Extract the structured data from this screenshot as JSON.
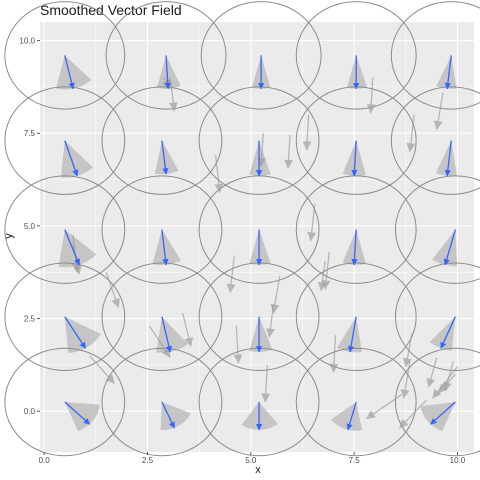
{
  "chart_data": {
    "type": "vector-field",
    "title": "Smoothed Vector Field",
    "xlabel": "x",
    "ylabel": "y",
    "xlim": [
      -0.1,
      10.4
    ],
    "ylim": [
      -1.1,
      10.5
    ],
    "x_ticks": [
      0.0,
      2.5,
      5.0,
      7.5,
      10.0
    ],
    "x_tick_labels": [
      "0.0",
      "2.5",
      "5.0",
      "7.5",
      "10.0"
    ],
    "y_ticks": [
      0.0,
      2.5,
      5.0,
      7.5,
      10.0
    ],
    "y_tick_labels": [
      "0.0",
      "2.5",
      "5.0",
      "7.5",
      "10.0"
    ],
    "grid": true,
    "colors": {
      "panel": "#ebebeb",
      "grid": "#ffffff",
      "smoothed_vector": "#3366ff",
      "raw_vector": "#999999",
      "cone": "#bebebe",
      "circle": "#8c8c8c"
    },
    "circle_radius": 1.45,
    "smoothed_vectors": [
      {
        "x": 0.5,
        "y": 9.6,
        "dx": 0.2,
        "dy": -0.9,
        "cone_l": -0.45,
        "cone_r": 0.55
      },
      {
        "x": 2.95,
        "y": 9.6,
        "dx": 0.05,
        "dy": -0.9,
        "cone_l": -0.3,
        "cone_r": 0.35
      },
      {
        "x": 5.25,
        "y": 9.6,
        "dx": 0.0,
        "dy": -0.9,
        "cone_l": -0.25,
        "cone_r": 0.25
      },
      {
        "x": 7.55,
        "y": 9.6,
        "dx": 0.0,
        "dy": -0.9,
        "cone_l": -0.25,
        "cone_r": 0.3
      },
      {
        "x": 9.85,
        "y": 9.6,
        "dx": -0.1,
        "dy": -0.9,
        "cone_l": -0.3,
        "cone_r": 0.25
      },
      {
        "x": 0.5,
        "y": 7.3,
        "dx": 0.3,
        "dy": -0.95,
        "cone_l": -0.4,
        "cone_r": 0.45
      },
      {
        "x": 2.85,
        "y": 7.3,
        "dx": 0.1,
        "dy": -0.9,
        "cone_l": -0.3,
        "cone_r": 0.35
      },
      {
        "x": 5.2,
        "y": 7.3,
        "dx": 0.0,
        "dy": -0.95,
        "cone_l": -0.25,
        "cone_r": 0.3
      },
      {
        "x": 7.55,
        "y": 7.3,
        "dx": -0.05,
        "dy": -0.95,
        "cone_l": -0.3,
        "cone_r": 0.3
      },
      {
        "x": 9.85,
        "y": 7.3,
        "dx": -0.1,
        "dy": -0.95,
        "cone_l": -0.3,
        "cone_r": 0.25
      },
      {
        "x": 0.5,
        "y": 4.9,
        "dx": 0.35,
        "dy": -0.95,
        "cone_l": -0.5,
        "cone_r": 0.5
      },
      {
        "x": 2.85,
        "y": 4.9,
        "dx": 0.1,
        "dy": -0.95,
        "cone_l": -0.35,
        "cone_r": 0.4
      },
      {
        "x": 5.2,
        "y": 4.9,
        "dx": 0.0,
        "dy": -0.95,
        "cone_l": -0.25,
        "cone_r": 0.3
      },
      {
        "x": 7.55,
        "y": 4.9,
        "dx": -0.05,
        "dy": -0.95,
        "cone_l": -0.3,
        "cone_r": 0.3
      },
      {
        "x": 9.95,
        "y": 4.9,
        "dx": -0.25,
        "dy": -0.95,
        "cone_l": -0.35,
        "cone_r": 0.3
      },
      {
        "x": 0.5,
        "y": 2.55,
        "dx": 0.5,
        "dy": -0.85,
        "cone_l": -0.45,
        "cone_r": 0.55
      },
      {
        "x": 2.85,
        "y": 2.55,
        "dx": 0.2,
        "dy": -0.95,
        "cone_l": -0.35,
        "cone_r": 0.5
      },
      {
        "x": 5.2,
        "y": 2.55,
        "dx": 0.0,
        "dy": -0.95,
        "cone_l": -0.25,
        "cone_r": 0.35
      },
      {
        "x": 7.55,
        "y": 2.55,
        "dx": -0.15,
        "dy": -0.95,
        "cone_l": -0.35,
        "cone_r": 0.3
      },
      {
        "x": 9.95,
        "y": 2.55,
        "dx": -0.35,
        "dy": -0.85,
        "cone_l": -0.35,
        "cone_r": 0.3
      },
      {
        "x": 0.5,
        "y": 0.25,
        "dx": 0.6,
        "dy": -0.6,
        "cone_l": -0.4,
        "cone_r": 0.7
      },
      {
        "x": 2.85,
        "y": 0.25,
        "dx": 0.3,
        "dy": -0.7,
        "cone_l": -0.45,
        "cone_r": 0.75
      },
      {
        "x": 5.2,
        "y": 0.25,
        "dx": 0.0,
        "dy": -0.75,
        "cone_l": -0.6,
        "cone_r": 0.65
      },
      {
        "x": 7.55,
        "y": 0.25,
        "dx": -0.2,
        "dy": -0.75,
        "cone_l": -0.65,
        "cone_r": 0.45
      },
      {
        "x": 9.95,
        "y": 0.25,
        "dx": -0.6,
        "dy": -0.6,
        "cone_l": -0.65,
        "cone_r": 0.4
      }
    ],
    "raw_vectors": [
      {
        "x": 2.9,
        "y": 9.0,
        "dx": 0.15,
        "dy": -0.3
      },
      {
        "x": 3.05,
        "y": 9.0,
        "dx": 0.1,
        "dy": -0.9
      },
      {
        "x": 7.95,
        "y": 9.0,
        "dx": -0.05,
        "dy": -0.95
      },
      {
        "x": 9.65,
        "y": 8.6,
        "dx": -0.15,
        "dy": -1.0
      },
      {
        "x": 5.3,
        "y": 7.5,
        "dx": -0.05,
        "dy": -0.9
      },
      {
        "x": 5.95,
        "y": 7.45,
        "dx": -0.05,
        "dy": -0.9
      },
      {
        "x": 6.4,
        "y": 8.0,
        "dx": -0.05,
        "dy": -0.95
      },
      {
        "x": 8.95,
        "y": 8.0,
        "dx": -0.1,
        "dy": -1.0
      },
      {
        "x": 4.15,
        "y": 6.9,
        "dx": 0.1,
        "dy": -1.0
      },
      {
        "x": 6.55,
        "y": 5.6,
        "dx": -0.1,
        "dy": -1.0
      },
      {
        "x": 0.7,
        "y": 4.75,
        "dx": 0.1,
        "dy": -1.0
      },
      {
        "x": 0.7,
        "y": 4.5,
        "dx": 0.15,
        "dy": -0.8
      },
      {
        "x": 4.6,
        "y": 4.2,
        "dx": -0.1,
        "dy": -1.0
      },
      {
        "x": 6.9,
        "y": 4.3,
        "dx": -0.1,
        "dy": -1.0
      },
      {
        "x": 6.8,
        "y": 4.05,
        "dx": -0.1,
        "dy": -0.8
      },
      {
        "x": 1.5,
        "y": 3.75,
        "dx": 0.3,
        "dy": -0.95
      },
      {
        "x": 5.7,
        "y": 3.65,
        "dx": -0.15,
        "dy": -1.0
      },
      {
        "x": 5.55,
        "y": 2.9,
        "dx": -0.1,
        "dy": -0.9
      },
      {
        "x": 2.55,
        "y": 2.3,
        "dx": 0.5,
        "dy": -0.85
      },
      {
        "x": 3.35,
        "y": 2.65,
        "dx": 0.2,
        "dy": -0.9
      },
      {
        "x": 4.65,
        "y": 2.3,
        "dx": 0.05,
        "dy": -1.0
      },
      {
        "x": 7.05,
        "y": 2.05,
        "dx": -0.05,
        "dy": -1.0
      },
      {
        "x": 8.9,
        "y": 2.1,
        "dx": -0.15,
        "dy": -0.9
      },
      {
        "x": 1.1,
        "y": 1.5,
        "dx": 0.6,
        "dy": -0.75
      },
      {
        "x": 5.4,
        "y": 1.25,
        "dx": -0.05,
        "dy": -1.0
      },
      {
        "x": 8.85,
        "y": 1.35,
        "dx": -0.15,
        "dy": -1.0
      },
      {
        "x": 9.5,
        "y": 1.45,
        "dx": -0.2,
        "dy": -0.8
      },
      {
        "x": 9.9,
        "y": 1.35,
        "dx": -0.2,
        "dy": -0.8
      },
      {
        "x": 10.0,
        "y": 1.2,
        "dx": -0.6,
        "dy": -0.85
      },
      {
        "x": 9.95,
        "y": 1.0,
        "dx": -0.4,
        "dy": -0.5
      },
      {
        "x": 8.65,
        "y": 0.45,
        "dx": -0.85,
        "dy": -0.65
      },
      {
        "x": 9.25,
        "y": 0.3,
        "dx": -0.65,
        "dy": -0.75
      }
    ]
  }
}
